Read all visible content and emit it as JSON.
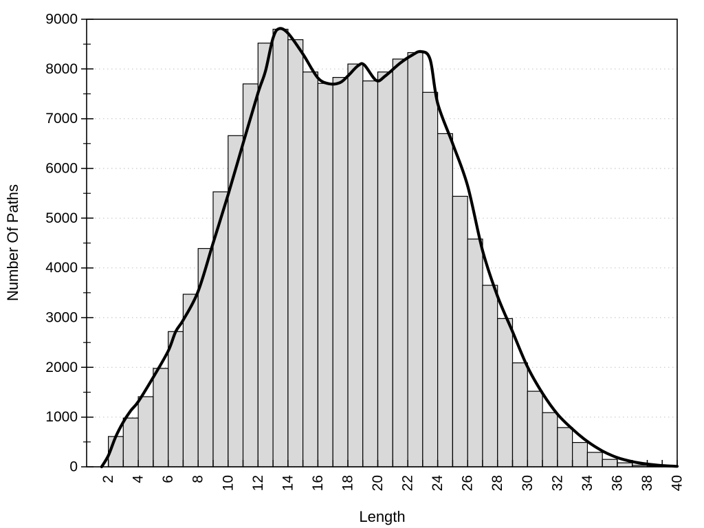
{
  "chart_data": {
    "type": "bar",
    "subtype": "histogram-with-smoothed-curve",
    "title": "",
    "xlabel": "Length",
    "ylabel": "Number Of Paths",
    "xlim": [
      0.55,
      40
    ],
    "ylim": [
      0,
      9000
    ],
    "x_major_ticks": [
      2,
      4,
      6,
      8,
      10,
      12,
      14,
      16,
      18,
      20,
      22,
      24,
      26,
      28,
      30,
      32,
      34,
      36,
      38,
      40
    ],
    "x_minor_tick_step": 1,
    "y_major_ticks": [
      0,
      1000,
      2000,
      3000,
      4000,
      5000,
      6000,
      7000,
      8000,
      9000
    ],
    "y_minor_tick_step": 500,
    "grid": {
      "horizontal": true,
      "vertical": false,
      "style": "dotted"
    },
    "bar_width_units": 1,
    "categories": [
      2,
      3,
      4,
      5,
      6,
      7,
      8,
      9,
      10,
      11,
      12,
      13,
      14,
      15,
      16,
      17,
      18,
      19,
      20,
      21,
      22,
      23,
      24,
      25,
      26,
      27,
      28,
      29,
      30,
      31,
      32,
      33,
      34,
      35,
      36,
      37,
      38,
      39
    ],
    "values": [
      610,
      980,
      1410,
      1980,
      2720,
      3470,
      4390,
      5530,
      6660,
      7700,
      8520,
      8800,
      8590,
      7940,
      7710,
      7830,
      8100,
      7760,
      7940,
      8200,
      8330,
      7530,
      6700,
      5440,
      4580,
      3650,
      2980,
      2090,
      1520,
      1090,
      790,
      490,
      290,
      150,
      80,
      30,
      12,
      5
    ],
    "series": [
      {
        "name": "path-length-histogram",
        "role": "bars"
      },
      {
        "name": "smoothed-density-curve",
        "role": "line"
      }
    ],
    "curve_points": [
      [
        1.55,
        0
      ],
      [
        2,
        225
      ],
      [
        2.5,
        610
      ],
      [
        3,
        900
      ],
      [
        3.5,
        1130
      ],
      [
        4,
        1310
      ],
      [
        5,
        1800
      ],
      [
        6,
        2330
      ],
      [
        6.5,
        2720
      ],
      [
        7,
        2950
      ],
      [
        8,
        3530
      ],
      [
        9,
        4500
      ],
      [
        10,
        5470
      ],
      [
        11,
        6500
      ],
      [
        12,
        7520
      ],
      [
        12.5,
        7960
      ],
      [
        13,
        8620
      ],
      [
        13.4,
        8810
      ],
      [
        14,
        8720
      ],
      [
        15,
        8300
      ],
      [
        16,
        7820
      ],
      [
        16.8,
        7700
      ],
      [
        17.5,
        7730
      ],
      [
        18,
        7860
      ],
      [
        18.7,
        8070
      ],
      [
        19.1,
        8080
      ],
      [
        19.9,
        7770
      ],
      [
        20.5,
        7860
      ],
      [
        21.5,
        8120
      ],
      [
        22.3,
        8280
      ],
      [
        22.9,
        8350
      ],
      [
        23.5,
        8190
      ],
      [
        24,
        7310
      ],
      [
        25,
        6500
      ],
      [
        26,
        5650
      ],
      [
        27,
        4350
      ],
      [
        28,
        3430
      ],
      [
        29,
        2720
      ],
      [
        30,
        2010
      ],
      [
        31,
        1480
      ],
      [
        32,
        1060
      ],
      [
        33,
        760
      ],
      [
        34,
        510
      ],
      [
        35,
        320
      ],
      [
        36,
        185
      ],
      [
        37,
        105
      ],
      [
        38,
        55
      ],
      [
        39,
        25
      ],
      [
        40,
        10
      ]
    ],
    "colors": {
      "background": "#ffffff",
      "bar_fill": "#d9d9d9",
      "bar_edge": "#000000",
      "curve": "#000000",
      "grid": "#c8c8c8",
      "axis": "#000000",
      "text": "#000000"
    },
    "legend": null
  }
}
